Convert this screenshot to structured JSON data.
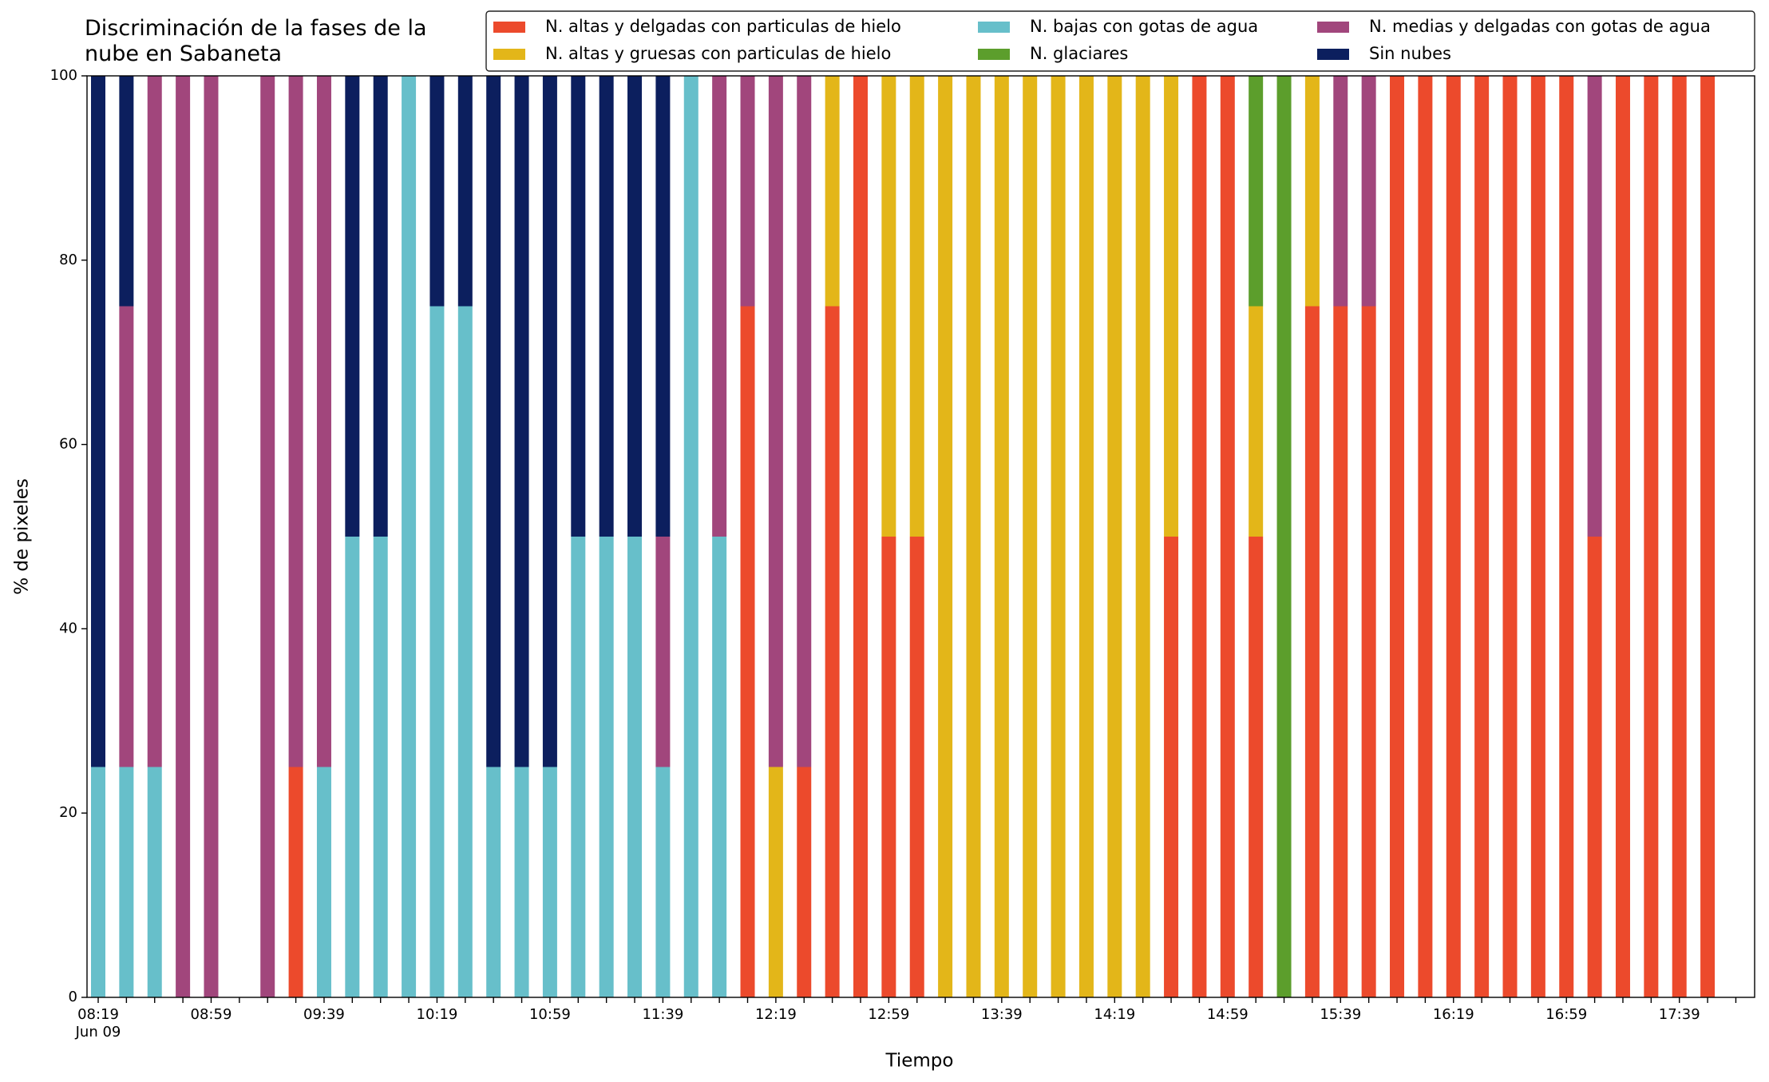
{
  "chart_data": {
    "type": "stacked_bar",
    "title": "Discriminación de la fases de la\nnube en Sabaneta",
    "x_label": "Tiempo",
    "y_label": "% de pixeles",
    "x_date": "Jun 09",
    "categories": [
      "08:19",
      null,
      null,
      null,
      "08:59",
      null,
      null,
      null,
      "09:39",
      null,
      null,
      null,
      "10:19",
      null,
      null,
      null,
      "10:59",
      null,
      null,
      null,
      "11:39",
      null,
      null,
      null,
      "12:19",
      null,
      null,
      null,
      "12:59",
      null,
      null,
      null,
      "13:39",
      null,
      null,
      null,
      "14:19",
      null,
      null,
      null,
      "14:59",
      null,
      null,
      null,
      "15:39",
      null,
      null,
      null,
      "16:19",
      null,
      null,
      null,
      "16:59",
      null,
      null,
      null,
      "17:39",
      null,
      null
    ],
    "ylim": [
      0,
      100
    ],
    "yticks": [
      0,
      20,
      40,
      60,
      80,
      100
    ],
    "legend": "top-right",
    "series": [
      {
        "name": "N. altas y delgadas con particulas de hielo",
        "color": "#ec4a2c",
        "values": [
          0,
          0,
          0,
          0,
          0,
          null,
          0,
          25,
          0,
          0,
          0,
          0,
          0,
          0,
          0,
          0,
          0,
          0,
          0,
          0,
          0,
          0,
          0,
          75,
          0,
          25,
          75,
          100,
          50,
          50,
          0,
          0,
          0,
          0,
          0,
          0,
          0,
          0,
          50,
          100,
          100,
          50,
          0,
          75,
          75,
          75,
          100,
          100,
          100,
          100,
          100,
          100,
          100,
          50,
          100,
          100,
          100,
          100,
          null
        ]
      },
      {
        "name": "N. altas y gruesas con particulas de hielo",
        "color": "#e3b619",
        "values": [
          0,
          0,
          0,
          0,
          0,
          null,
          0,
          0,
          0,
          0,
          0,
          0,
          0,
          0,
          0,
          0,
          0,
          0,
          0,
          0,
          0,
          0,
          0,
          0,
          25,
          0,
          25,
          0,
          50,
          50,
          100,
          100,
          100,
          100,
          100,
          100,
          100,
          100,
          50,
          0,
          0,
          25,
          0,
          25,
          0,
          0,
          0,
          0,
          0,
          0,
          0,
          0,
          0,
          0,
          0,
          0,
          0,
          0,
          null
        ]
      },
      {
        "name": "N. bajas con gotas de agua",
        "color": "#67bfca",
        "values": [
          25,
          25,
          25,
          0,
          0,
          null,
          0,
          0,
          25,
          50,
          50,
          100,
          75,
          75,
          25,
          25,
          25,
          50,
          50,
          50,
          25,
          100,
          50,
          0,
          0,
          0,
          0,
          0,
          0,
          0,
          0,
          0,
          0,
          0,
          0,
          0,
          0,
          0,
          0,
          0,
          0,
          0,
          0,
          0,
          0,
          0,
          0,
          0,
          0,
          0,
          0,
          0,
          0,
          0,
          0,
          0,
          0,
          0,
          null
        ]
      },
      {
        "name": "N. glaciares",
        "color": "#5c9e2c",
        "values": [
          0,
          0,
          0,
          0,
          0,
          null,
          0,
          0,
          0,
          0,
          0,
          0,
          0,
          0,
          0,
          0,
          0,
          0,
          0,
          0,
          0,
          0,
          0,
          0,
          0,
          0,
          0,
          0,
          0,
          0,
          0,
          0,
          0,
          0,
          0,
          0,
          0,
          0,
          0,
          0,
          0,
          25,
          100,
          0,
          0,
          0,
          0,
          0,
          0,
          0,
          0,
          0,
          0,
          0,
          0,
          0,
          0,
          0,
          null
        ]
      },
      {
        "name": "N. medias y delgadas con gotas de agua",
        "color": "#a1467c",
        "values": [
          0,
          50,
          75,
          100,
          100,
          null,
          100,
          75,
          75,
          0,
          0,
          0,
          0,
          0,
          0,
          0,
          0,
          0,
          0,
          0,
          25,
          0,
          50,
          25,
          75,
          75,
          0,
          0,
          0,
          0,
          0,
          0,
          0,
          0,
          0,
          0,
          0,
          0,
          0,
          0,
          0,
          0,
          0,
          0,
          25,
          25,
          0,
          0,
          0,
          0,
          0,
          0,
          0,
          50,
          0,
          0,
          0,
          0,
          null
        ]
      },
      {
        "name": "Sin nubes",
        "color": "#0c1f5e",
        "values": [
          75,
          25,
          0,
          0,
          0,
          null,
          0,
          0,
          0,
          50,
          50,
          0,
          25,
          25,
          75,
          75,
          75,
          50,
          50,
          50,
          50,
          0,
          0,
          0,
          0,
          0,
          0,
          0,
          0,
          0,
          0,
          0,
          0,
          0,
          0,
          0,
          0,
          0,
          0,
          0,
          0,
          0,
          0,
          0,
          0,
          0,
          0,
          0,
          0,
          0,
          0,
          0,
          0,
          0,
          0,
          0,
          0,
          0,
          null
        ]
      }
    ]
  }
}
